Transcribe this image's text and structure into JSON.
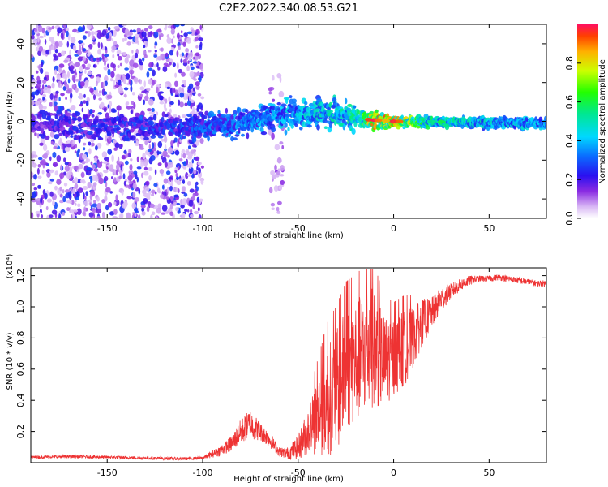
{
  "title": "C2E2.2022.340.08.53.G21",
  "chart_data": [
    {
      "type": "heatmap",
      "name": "spectrogram",
      "xlabel": "Height of straight line (km)",
      "ylabel": "Frequency (Hz)",
      "xlim": [
        -190,
        80
      ],
      "ylim": [
        -50,
        50
      ],
      "xticks": [
        -150,
        -100,
        -50,
        0,
        50
      ],
      "xtick_labels": [
        "-150",
        "-100",
        "-50",
        "0",
        "50"
      ],
      "yticks": [
        -40,
        -20,
        0,
        20,
        40
      ],
      "ytick_labels": [
        "-40",
        "-20",
        "0",
        "20",
        "40"
      ],
      "colorbar": {
        "label": "Normalized spectral amplitude",
        "range": [
          0,
          1
        ],
        "ticks": [
          0.0,
          0.2,
          0.4,
          0.6,
          0.8
        ],
        "tick_labels": [
          "0.0",
          "0.2",
          "0.4",
          "0.6",
          "0.8"
        ],
        "colormap": "rainbow"
      },
      "features": [
        {
          "description": "broad scattered noise",
          "x_range": [
            -190,
            -100
          ],
          "freq_range": [
            -50,
            50
          ],
          "amplitude": [
            0.05,
            0.3
          ]
        },
        {
          "description": "scattered noise column",
          "x_range": [
            -65,
            -58
          ],
          "freq_range": [
            -50,
            25
          ],
          "amplitude": [
            0.05,
            0.15
          ]
        },
        {
          "description": "main tone",
          "x_range": [
            -190,
            80
          ],
          "center_freq": [
            [
              -190,
              -2
            ],
            [
              -110,
              -3
            ],
            [
              -80,
              -1
            ],
            [
              -60,
              3
            ],
            [
              -30,
              4
            ],
            [
              -15,
              1
            ],
            [
              0,
              0
            ],
            [
              80,
              -1
            ]
          ],
          "amplitude_trend": [
            [
              -190,
              0.25
            ],
            [
              -100,
              0.35
            ],
            [
              -60,
              0.45
            ],
            [
              -20,
              0.6
            ],
            [
              -10,
              0.95
            ],
            [
              0,
              0.95
            ],
            [
              20,
              0.6
            ],
            [
              80,
              0.45
            ]
          ]
        }
      ]
    },
    {
      "type": "line",
      "name": "snr",
      "xlabel": "Height of straight line (km)",
      "ylabel": "SNR (10 * v/v)",
      "scale_label": "(x10⁴)",
      "xlim": [
        -190,
        80
      ],
      "ylim": [
        0,
        1.25
      ],
      "xticks": [
        -150,
        -100,
        -50,
        0,
        50
      ],
      "xtick_labels": [
        "-150",
        "-100",
        "-50",
        "0",
        "50"
      ],
      "yticks": [
        0.2,
        0.4,
        0.6,
        0.8,
        1.0,
        1.2
      ],
      "ytick_labels": [
        "0.2",
        "0.4",
        "0.6",
        "0.8",
        "1.0",
        "1.2"
      ],
      "color": "#ee3333",
      "series": [
        {
          "name": "SNR",
          "x": [
            -190,
            -170,
            -150,
            -130,
            -110,
            -100,
            -92,
            -85,
            -80,
            -75,
            -70,
            -65,
            -60,
            -55,
            -50,
            -45,
            -40,
            -35,
            -30,
            -25,
            -20,
            -15,
            -12,
            -8,
            -5,
            0,
            5,
            10,
            15,
            20,
            25,
            30,
            35,
            40,
            45,
            50,
            55,
            60,
            65,
            70,
            75,
            80
          ],
          "y": [
            0.035,
            0.04,
            0.035,
            0.03,
            0.025,
            0.03,
            0.07,
            0.12,
            0.2,
            0.25,
            0.2,
            0.15,
            0.07,
            0.06,
            0.1,
            0.2,
            0.3,
            0.4,
            0.45,
            0.6,
            0.65,
            0.7,
            0.75,
            0.7,
            0.65,
            0.68,
            0.72,
            0.8,
            0.9,
            0.96,
            1.05,
            1.1,
            1.14,
            1.17,
            1.18,
            1.18,
            1.19,
            1.18,
            1.17,
            1.16,
            1.15,
            1.15
          ],
          "noise_amplitude": [
            0.01,
            0.01,
            0.01,
            0.01,
            0.01,
            0.01,
            0.03,
            0.05,
            0.08,
            0.1,
            0.06,
            0.05,
            0.03,
            0.04,
            0.08,
            0.15,
            0.25,
            0.35,
            0.4,
            0.4,
            0.4,
            0.4,
            0.4,
            0.35,
            0.3,
            0.25,
            0.25,
            0.2,
            0.15,
            0.1,
            0.08,
            0.05,
            0.04,
            0.03,
            0.02,
            0.02,
            0.02,
            0.02,
            0.02,
            0.02,
            0.02,
            0.02
          ]
        }
      ]
    }
  ]
}
